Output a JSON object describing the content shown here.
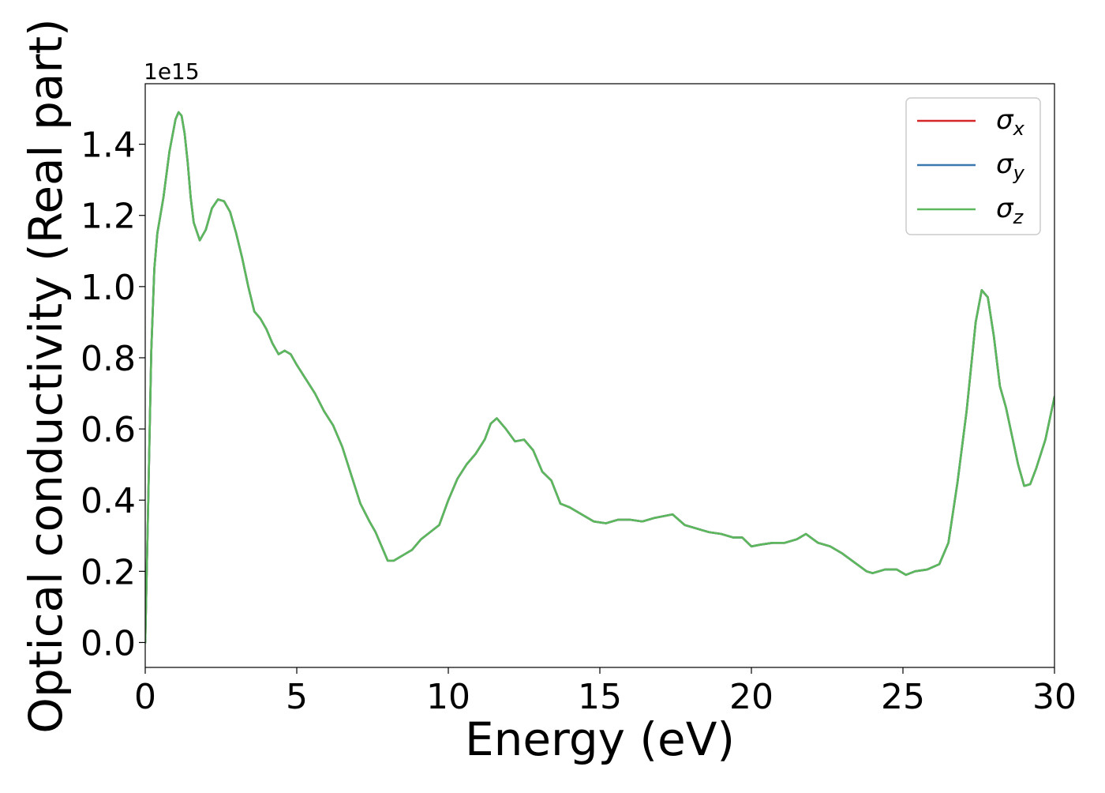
{
  "chart_data": {
    "type": "line",
    "title": "",
    "xlabel": "Energy (eV)",
    "ylabel": "Optical conductivity (Real part)",
    "y_offset_text": "1e15",
    "xlim": [
      0,
      30
    ],
    "ylim": [
      -0.07,
      1.57
    ],
    "xticks": [
      0,
      5,
      10,
      15,
      20,
      25,
      30
    ],
    "xtick_labels": [
      "0",
      "5",
      "10",
      "15",
      "20",
      "25",
      "30"
    ],
    "yticks": [
      0.0,
      0.2,
      0.4,
      0.6,
      0.8,
      1.0,
      1.2,
      1.4
    ],
    "ytick_labels": [
      "0.0",
      "0.2",
      "0.4",
      "0.6",
      "0.8",
      "1.0",
      "1.2",
      "1.4"
    ],
    "grid": false,
    "legend_position": "upper right",
    "legend": [
      {
        "symbol": "σ",
        "subscript": "x",
        "color": "#d62728"
      },
      {
        "symbol": "σ",
        "subscript": "y",
        "color": "#3a78b0"
      },
      {
        "symbol": "σ",
        "subscript": "z",
        "color": "#5cb85c"
      }
    ],
    "series": [
      {
        "name": "σx",
        "color": "#d62728",
        "x": [
          0,
          0.1,
          0.2,
          0.3,
          0.4,
          0.6,
          0.8,
          1.0,
          1.1,
          1.2,
          1.3,
          1.4,
          1.5,
          1.6,
          1.8,
          2.0,
          2.2,
          2.4,
          2.6,
          2.8,
          3.0,
          3.2,
          3.4,
          3.6,
          3.8,
          4.0,
          4.2,
          4.4,
          4.6,
          4.8,
          5.0,
          5.3,
          5.6,
          5.9,
          6.2,
          6.5,
          6.8,
          7.1,
          7.4,
          7.6,
          7.8,
          8.0,
          8.2,
          8.5,
          8.8,
          9.1,
          9.4,
          9.7,
          10.0,
          10.3,
          10.6,
          10.9,
          11.2,
          11.4,
          11.6,
          11.9,
          12.2,
          12.5,
          12.8,
          13.1,
          13.4,
          13.7,
          14.0,
          14.4,
          14.8,
          15.2,
          15.6,
          16.0,
          16.4,
          16.8,
          17.1,
          17.4,
          17.8,
          18.2,
          18.6,
          19.0,
          19.4,
          19.7,
          20.0,
          20.3,
          20.7,
          21.1,
          21.5,
          21.8,
          22.2,
          22.6,
          23.0,
          23.4,
          23.8,
          24.0,
          24.4,
          24.8,
          25.1,
          25.4,
          25.8,
          26.2,
          26.5,
          26.8,
          27.1,
          27.4,
          27.6,
          27.8,
          28.0,
          28.2,
          28.4,
          28.6,
          28.8,
          29.0,
          29.2,
          29.4,
          29.7,
          30.0
        ],
        "y": [
          0.0,
          0.4,
          0.82,
          1.05,
          1.15,
          1.25,
          1.38,
          1.47,
          1.49,
          1.48,
          1.43,
          1.35,
          1.25,
          1.18,
          1.13,
          1.16,
          1.22,
          1.245,
          1.24,
          1.21,
          1.15,
          1.08,
          1.0,
          0.93,
          0.91,
          0.88,
          0.84,
          0.81,
          0.82,
          0.81,
          0.78,
          0.74,
          0.7,
          0.65,
          0.61,
          0.55,
          0.47,
          0.39,
          0.34,
          0.31,
          0.27,
          0.23,
          0.23,
          0.245,
          0.26,
          0.29,
          0.31,
          0.33,
          0.4,
          0.46,
          0.5,
          0.53,
          0.57,
          0.615,
          0.63,
          0.6,
          0.565,
          0.57,
          0.54,
          0.48,
          0.455,
          0.39,
          0.38,
          0.36,
          0.34,
          0.335,
          0.345,
          0.345,
          0.34,
          0.35,
          0.355,
          0.36,
          0.33,
          0.32,
          0.31,
          0.305,
          0.295,
          0.295,
          0.27,
          0.275,
          0.28,
          0.28,
          0.29,
          0.305,
          0.28,
          0.27,
          0.25,
          0.225,
          0.2,
          0.195,
          0.205,
          0.205,
          0.19,
          0.2,
          0.205,
          0.22,
          0.28,
          0.45,
          0.65,
          0.9,
          0.99,
          0.97,
          0.86,
          0.72,
          0.66,
          0.58,
          0.5,
          0.44,
          0.445,
          0.49,
          0.57,
          0.69
        ]
      },
      {
        "name": "σy",
        "color": "#3a78b0",
        "x": [
          0,
          0.1,
          0.2,
          0.3,
          0.4,
          0.6,
          0.8,
          1.0,
          1.1,
          1.2,
          1.3,
          1.4,
          1.5,
          1.6,
          1.8,
          2.0,
          2.2,
          2.4,
          2.6,
          2.8,
          3.0,
          3.2,
          3.4,
          3.6,
          3.8,
          4.0,
          4.2,
          4.4,
          4.6,
          4.8,
          5.0,
          5.3,
          5.6,
          5.9,
          6.2,
          6.5,
          6.8,
          7.1,
          7.4,
          7.6,
          7.8,
          8.0,
          8.2,
          8.5,
          8.8,
          9.1,
          9.4,
          9.7,
          10.0,
          10.3,
          10.6,
          10.9,
          11.2,
          11.4,
          11.6,
          11.9,
          12.2,
          12.5,
          12.8,
          13.1,
          13.4,
          13.7,
          14.0,
          14.4,
          14.8,
          15.2,
          15.6,
          16.0,
          16.4,
          16.8,
          17.1,
          17.4,
          17.8,
          18.2,
          18.6,
          19.0,
          19.4,
          19.7,
          20.0,
          20.3,
          20.7,
          21.1,
          21.5,
          21.8,
          22.2,
          22.6,
          23.0,
          23.4,
          23.8,
          24.0,
          24.4,
          24.8,
          25.1,
          25.4,
          25.8,
          26.2,
          26.5,
          26.8,
          27.1,
          27.4,
          27.6,
          27.8,
          28.0,
          28.2,
          28.4,
          28.6,
          28.8,
          29.0,
          29.2,
          29.4,
          29.7,
          30.0
        ],
        "y": [
          0.0,
          0.4,
          0.82,
          1.05,
          1.15,
          1.25,
          1.38,
          1.47,
          1.49,
          1.48,
          1.43,
          1.35,
          1.25,
          1.18,
          1.13,
          1.16,
          1.22,
          1.245,
          1.24,
          1.21,
          1.15,
          1.08,
          1.0,
          0.93,
          0.91,
          0.88,
          0.84,
          0.81,
          0.82,
          0.81,
          0.78,
          0.74,
          0.7,
          0.65,
          0.61,
          0.55,
          0.47,
          0.39,
          0.34,
          0.31,
          0.27,
          0.23,
          0.23,
          0.245,
          0.26,
          0.29,
          0.31,
          0.33,
          0.4,
          0.46,
          0.5,
          0.53,
          0.57,
          0.615,
          0.63,
          0.6,
          0.565,
          0.57,
          0.54,
          0.48,
          0.455,
          0.39,
          0.38,
          0.36,
          0.34,
          0.335,
          0.345,
          0.345,
          0.34,
          0.35,
          0.355,
          0.36,
          0.33,
          0.32,
          0.31,
          0.305,
          0.295,
          0.295,
          0.27,
          0.275,
          0.28,
          0.28,
          0.29,
          0.305,
          0.28,
          0.27,
          0.25,
          0.225,
          0.2,
          0.195,
          0.205,
          0.205,
          0.19,
          0.2,
          0.205,
          0.22,
          0.28,
          0.45,
          0.65,
          0.9,
          0.99,
          0.97,
          0.86,
          0.72,
          0.66,
          0.58,
          0.5,
          0.44,
          0.445,
          0.49,
          0.57,
          0.69
        ]
      },
      {
        "name": "σz",
        "color": "#5cb85c",
        "x": [
          0,
          0.1,
          0.2,
          0.3,
          0.4,
          0.6,
          0.8,
          1.0,
          1.1,
          1.2,
          1.3,
          1.4,
          1.5,
          1.6,
          1.8,
          2.0,
          2.2,
          2.4,
          2.6,
          2.8,
          3.0,
          3.2,
          3.4,
          3.6,
          3.8,
          4.0,
          4.2,
          4.4,
          4.6,
          4.8,
          5.0,
          5.3,
          5.6,
          5.9,
          6.2,
          6.5,
          6.8,
          7.1,
          7.4,
          7.6,
          7.8,
          8.0,
          8.2,
          8.5,
          8.8,
          9.1,
          9.4,
          9.7,
          10.0,
          10.3,
          10.6,
          10.9,
          11.2,
          11.4,
          11.6,
          11.9,
          12.2,
          12.5,
          12.8,
          13.1,
          13.4,
          13.7,
          14.0,
          14.4,
          14.8,
          15.2,
          15.6,
          16.0,
          16.4,
          16.8,
          17.1,
          17.4,
          17.8,
          18.2,
          18.6,
          19.0,
          19.4,
          19.7,
          20.0,
          20.3,
          20.7,
          21.1,
          21.5,
          21.8,
          22.2,
          22.6,
          23.0,
          23.4,
          23.8,
          24.0,
          24.4,
          24.8,
          25.1,
          25.4,
          25.8,
          26.2,
          26.5,
          26.8,
          27.1,
          27.4,
          27.6,
          27.8,
          28.0,
          28.2,
          28.4,
          28.6,
          28.8,
          29.0,
          29.2,
          29.4,
          29.7,
          30.0
        ],
        "y": [
          0.0,
          0.4,
          0.82,
          1.05,
          1.15,
          1.25,
          1.38,
          1.47,
          1.49,
          1.48,
          1.43,
          1.35,
          1.25,
          1.18,
          1.13,
          1.16,
          1.22,
          1.245,
          1.24,
          1.21,
          1.15,
          1.08,
          1.0,
          0.93,
          0.91,
          0.88,
          0.84,
          0.81,
          0.82,
          0.81,
          0.78,
          0.74,
          0.7,
          0.65,
          0.61,
          0.55,
          0.47,
          0.39,
          0.34,
          0.31,
          0.27,
          0.23,
          0.23,
          0.245,
          0.26,
          0.29,
          0.31,
          0.33,
          0.4,
          0.46,
          0.5,
          0.53,
          0.57,
          0.615,
          0.63,
          0.6,
          0.565,
          0.57,
          0.54,
          0.48,
          0.455,
          0.39,
          0.38,
          0.36,
          0.34,
          0.335,
          0.345,
          0.345,
          0.34,
          0.35,
          0.355,
          0.36,
          0.33,
          0.32,
          0.31,
          0.305,
          0.295,
          0.295,
          0.27,
          0.275,
          0.28,
          0.28,
          0.29,
          0.305,
          0.28,
          0.27,
          0.25,
          0.225,
          0.2,
          0.195,
          0.205,
          0.205,
          0.19,
          0.2,
          0.205,
          0.22,
          0.28,
          0.45,
          0.65,
          0.9,
          0.99,
          0.97,
          0.86,
          0.72,
          0.66,
          0.58,
          0.5,
          0.44,
          0.445,
          0.49,
          0.57,
          0.69
        ]
      }
    ]
  }
}
